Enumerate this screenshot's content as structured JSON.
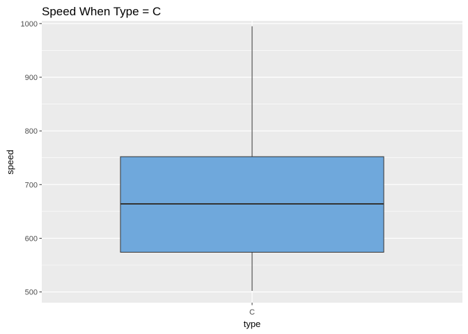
{
  "chart_data": {
    "type": "boxplot",
    "title": "Speed When Type = C",
    "xlabel": "type",
    "ylabel": "speed",
    "categories": [
      "C"
    ],
    "ylim": [
      480,
      1005
    ],
    "yticks": [
      500,
      600,
      700,
      800,
      900,
      1000
    ],
    "boxes": [
      {
        "category": "C",
        "min": 502,
        "q1": 574,
        "median": 664,
        "q3": 752,
        "max": 995
      }
    ],
    "grid": true,
    "colors": {
      "panel": "#ebebeb",
      "grid": "#ffffff",
      "box_fill": "#6fa8dc",
      "box_stroke": "#333333"
    }
  }
}
